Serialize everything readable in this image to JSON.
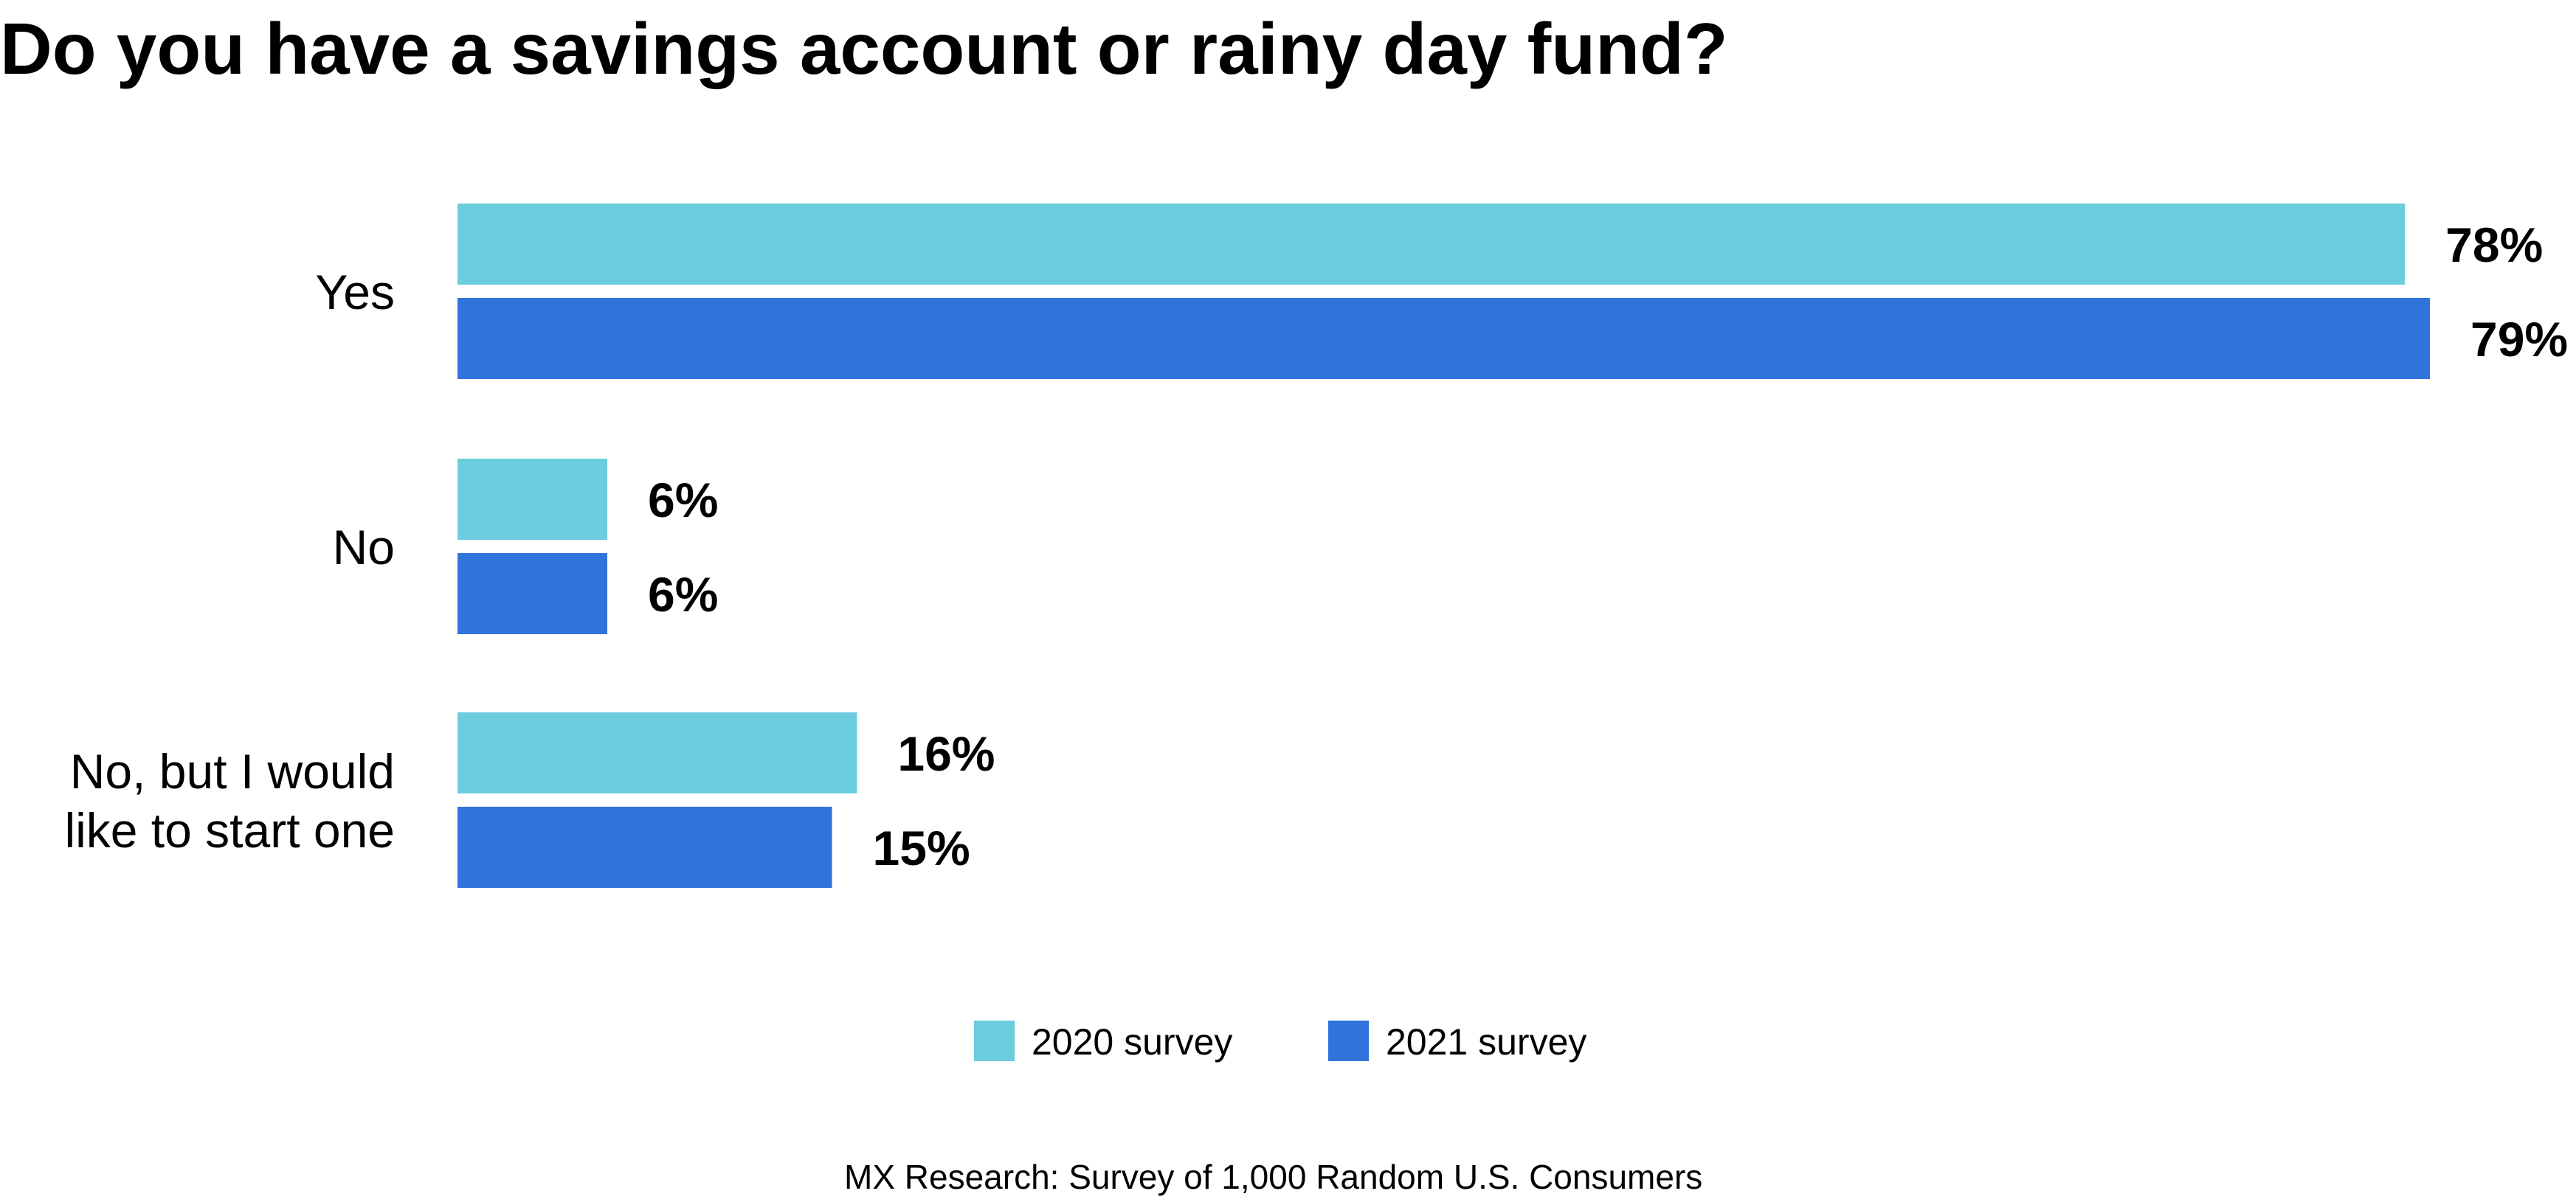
{
  "chart_data": {
    "type": "bar",
    "orientation": "horizontal",
    "title": "Do you have a savings account or rainy day fund?",
    "categories": [
      [
        "Yes"
      ],
      [
        "No"
      ],
      [
        "No, but I would",
        "like to start one"
      ]
    ],
    "series": [
      {
        "name": "2020 survey",
        "color": "#6BCDDD",
        "values": [
          78,
          6,
          16
        ],
        "labels": [
          "78%",
          "6%",
          "16%"
        ]
      },
      {
        "name": "2021 survey",
        "color": "#2F73DB",
        "values": [
          79,
          6,
          15
        ],
        "labels": [
          "79%",
          "6%",
          "15%"
        ]
      }
    ],
    "unit": "%",
    "xlim": [
      0,
      79
    ],
    "grid": false,
    "legend": "bottom-center",
    "source": "MX Research: Survey of 1,000 Random U.S. Consumers"
  }
}
